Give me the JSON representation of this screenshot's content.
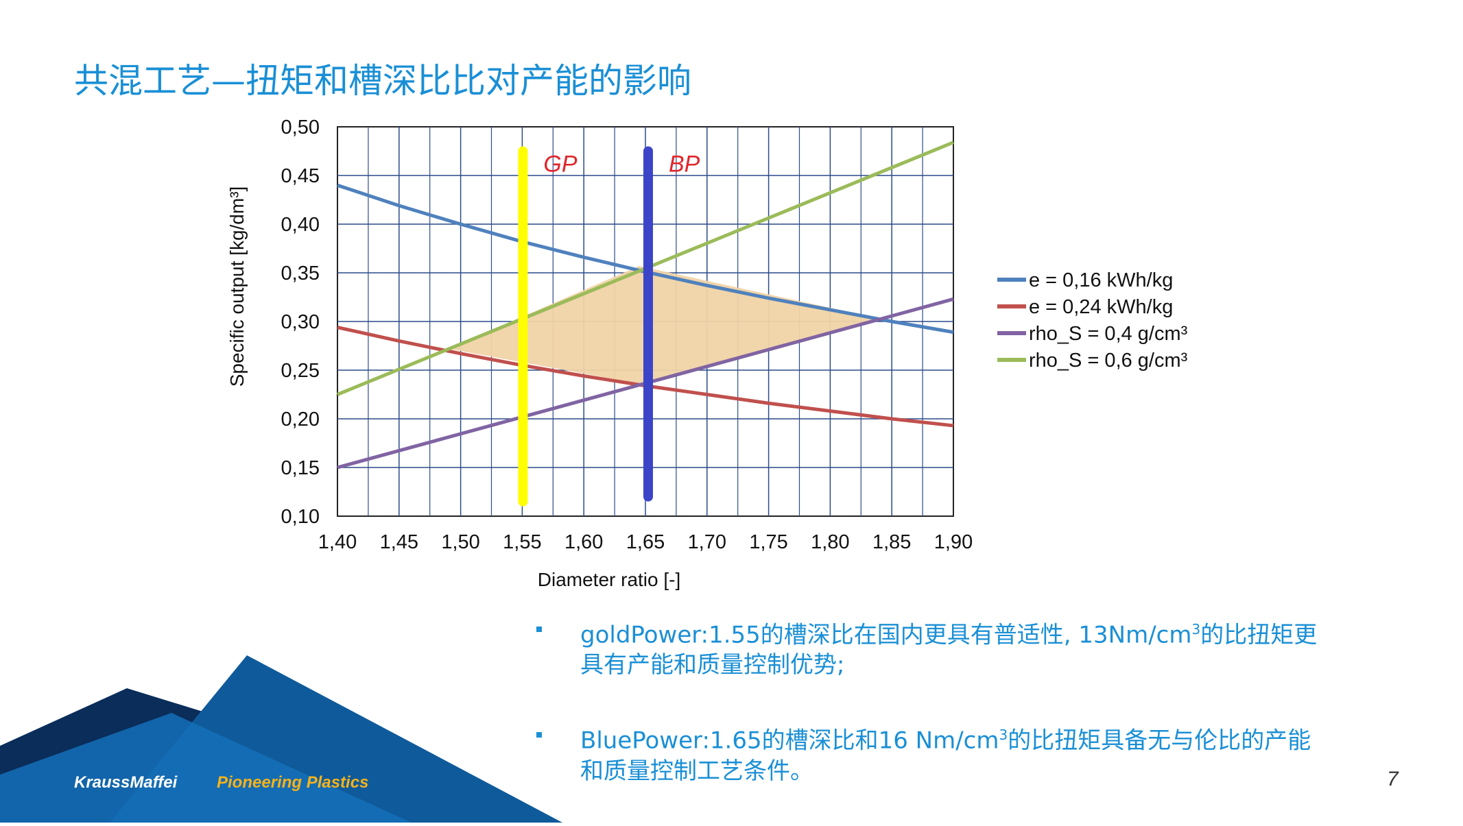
{
  "slide": {
    "title": "共混工艺—扭矩和槽深比比对产能的影响",
    "page_number": "7",
    "brand": {
      "name": "KraussMaffei",
      "tagline": "Pioneering Plastics"
    },
    "colors": {
      "title": "#1a8fd6",
      "footer_dark": "#0a2d5a",
      "footer_mid": "#0f5a9a",
      "tagline": "#f6b21a"
    }
  },
  "bullets": [
    {
      "label_line1_a": "goldPower:1.55的槽深比在国内更具有普适性, 13Nm/cm",
      "sup": "3",
      "label_line1_b": "的比扭矩更",
      "label_line2": "具有产能和质量控制优势;"
    },
    {
      "label_line1_a": "BluePower:1.65的槽深比和16 Nm/cm",
      "sup": "3",
      "label_line1_b": "的比扭矩具备无与伦比的产能",
      "label_line2": "和质量控制工艺条件。"
    }
  ],
  "chart_data": {
    "type": "line",
    "xlabel": "Diameter ratio [-]",
    "ylabel": "Specific output [kg/dm³]",
    "xlim": [
      1.4,
      1.9
    ],
    "ylim": [
      0.1,
      0.5
    ],
    "x_ticks": [
      "1,40",
      "1,45",
      "1,50",
      "1,55",
      "1,60",
      "1,65",
      "1,70",
      "1,75",
      "1,80",
      "1,85",
      "1,90"
    ],
    "y_ticks": [
      "0,50",
      "0,45",
      "0,40",
      "0,35",
      "0,30",
      "0,25",
      "0,20",
      "0,15",
      "0,10"
    ],
    "grid": true,
    "legend_position": "right",
    "series": [
      {
        "name": "e = 0,16 kWh/kg",
        "color": "#4f81bd",
        "x": [
          1.4,
          1.45,
          1.5,
          1.55,
          1.6,
          1.65,
          1.7,
          1.75,
          1.8,
          1.85,
          1.9
        ],
        "y": [
          0.44,
          0.419,
          0.4,
          0.382,
          0.366,
          0.351,
          0.337,
          0.324,
          0.312,
          0.3,
          0.289
        ]
      },
      {
        "name": "e = 0,24 kWh/kg",
        "color": "#c0504d",
        "x": [
          1.4,
          1.45,
          1.5,
          1.55,
          1.6,
          1.65,
          1.7,
          1.75,
          1.8,
          1.85,
          1.9
        ],
        "y": [
          0.294,
          0.28,
          0.267,
          0.255,
          0.244,
          0.234,
          0.225,
          0.216,
          0.208,
          0.2,
          0.193
        ]
      },
      {
        "name": "rho_S = 0,4 g/cm³",
        "color": "#8064a2",
        "x": [
          1.4,
          1.9
        ],
        "y": [
          0.15,
          0.323
        ]
      },
      {
        "name": "rho_S = 0,6 g/cm³",
        "color": "#9bbb59",
        "x": [
          1.4,
          1.9
        ],
        "y": [
          0.225,
          0.484
        ]
      }
    ],
    "shaded_region": {
      "color": "#f0d3a6",
      "points": [
        [
          1.49,
          0.272
        ],
        [
          1.645,
          0.357
        ],
        [
          1.84,
          0.303
        ],
        [
          1.645,
          0.236
        ]
      ]
    },
    "vertical_markers": [
      {
        "label": "GP",
        "x": 1.55,
        "y_range": [
          0.115,
          0.475
        ],
        "color": "#ffff00"
      },
      {
        "label": "BP",
        "x": 1.65,
        "y_range": [
          0.12,
          0.475
        ],
        "color": "#3c45c8"
      }
    ]
  }
}
